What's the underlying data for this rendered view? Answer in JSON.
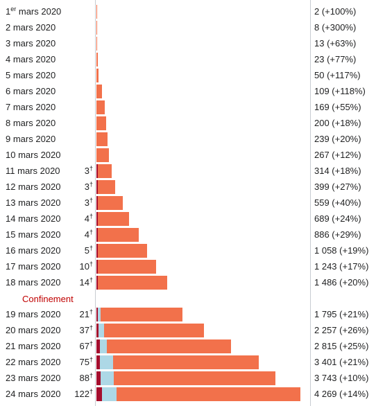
{
  "chart_data": {
    "type": "bar",
    "stacked": true,
    "orientation": "horizontal",
    "colors": {
      "deaths": "#a50e2d",
      "recovered": "#add8e6",
      "active": "#f2714b",
      "event_text": "#c00000",
      "axis": "#c8ccd1"
    },
    "x_max": 4269,
    "event": {
      "label": "Confinement",
      "after": "18 mars 2020"
    },
    "rows": [
      {
        "day": "1",
        "sup": "er",
        "month": "mars 2020",
        "deaths": "",
        "total": "2 (+100%)",
        "value": 2,
        "d": 0,
        "r": 0
      },
      {
        "day": "2",
        "sup": "",
        "month": "mars 2020",
        "deaths": "",
        "total": "8 (+300%)",
        "value": 8,
        "d": 0,
        "r": 0
      },
      {
        "day": "3",
        "sup": "",
        "month": "mars 2020",
        "deaths": "",
        "total": "13 (+63%)",
        "value": 13,
        "d": 0,
        "r": 0
      },
      {
        "day": "4",
        "sup": "",
        "month": "mars 2020",
        "deaths": "",
        "total": "23 (+77%)",
        "value": 23,
        "d": 0,
        "r": 0
      },
      {
        "day": "5",
        "sup": "",
        "month": "mars 2020",
        "deaths": "",
        "total": "50 (+117%)",
        "value": 50,
        "d": 0,
        "r": 0
      },
      {
        "day": "6",
        "sup": "",
        "month": "mars 2020",
        "deaths": "",
        "total": "109 (+118%)",
        "value": 109,
        "d": 0,
        "r": 0
      },
      {
        "day": "7",
        "sup": "",
        "month": "mars 2020",
        "deaths": "",
        "total": "169 (+55%)",
        "value": 169,
        "d": 0,
        "r": 0
      },
      {
        "day": "8",
        "sup": "",
        "month": "mars 2020",
        "deaths": "",
        "total": "200 (+18%)",
        "value": 200,
        "d": 0,
        "r": 0
      },
      {
        "day": "9",
        "sup": "",
        "month": "mars 2020",
        "deaths": "",
        "total": "239 (+20%)",
        "value": 239,
        "d": 0,
        "r": 0
      },
      {
        "day": "10",
        "sup": "",
        "month": "mars 2020",
        "deaths": "",
        "total": "267 (+12%)",
        "value": 267,
        "d": 0,
        "r": 0
      },
      {
        "day": "11",
        "sup": "",
        "month": "mars 2020",
        "deaths": "3",
        "total": "314 (+18%)",
        "value": 314,
        "d": 3,
        "r": 0
      },
      {
        "day": "12",
        "sup": "",
        "month": "mars 2020",
        "deaths": "3",
        "total": "399 (+27%)",
        "value": 399,
        "d": 3,
        "r": 0
      },
      {
        "day": "13",
        "sup": "",
        "month": "mars 2020",
        "deaths": "3",
        "total": "559 (+40%)",
        "value": 559,
        "d": 3,
        "r": 0
      },
      {
        "day": "14",
        "sup": "",
        "month": "mars 2020",
        "deaths": "4",
        "total": "689 (+24%)",
        "value": 689,
        "d": 4,
        "r": 0
      },
      {
        "day": "15",
        "sup": "",
        "month": "mars 2020",
        "deaths": "4",
        "total": "886 (+29%)",
        "value": 886,
        "d": 4,
        "r": 0
      },
      {
        "day": "16",
        "sup": "",
        "month": "mars 2020",
        "deaths": "5",
        "total": "1 058 (+19%)",
        "value": 1058,
        "d": 5,
        "r": 0
      },
      {
        "day": "17",
        "sup": "",
        "month": "mars 2020",
        "deaths": "10",
        "total": "1 243 (+17%)",
        "value": 1243,
        "d": 10,
        "r": 0
      },
      {
        "day": "18",
        "sup": "",
        "month": "mars 2020",
        "deaths": "14",
        "total": "1 486 (+20%)",
        "value": 1486,
        "d": 14,
        "r": 0
      },
      {
        "day": "19",
        "sup": "",
        "month": "mars 2020",
        "deaths": "21",
        "total": "1 795 (+21%)",
        "value": 1795,
        "d": 21,
        "r": 55
      },
      {
        "day": "20",
        "sup": "",
        "month": "mars 2020",
        "deaths": "37",
        "total": "2 257 (+26%)",
        "value": 2257,
        "d": 37,
        "r": 110
      },
      {
        "day": "21",
        "sup": "",
        "month": "mars 2020",
        "deaths": "67",
        "total": "2 815 (+25%)",
        "value": 2815,
        "d": 67,
        "r": 150
      },
      {
        "day": "22",
        "sup": "",
        "month": "mars 2020",
        "deaths": "75",
        "total": "3 401 (+21%)",
        "value": 3401,
        "d": 75,
        "r": 270
      },
      {
        "day": "23",
        "sup": "",
        "month": "mars 2020",
        "deaths": "88",
        "total": "3 743 (+10%)",
        "value": 3743,
        "d": 88,
        "r": 270
      },
      {
        "day": "24",
        "sup": "",
        "month": "mars 2020",
        "deaths": "122",
        "total": "4 269 (+14%)",
        "value": 4269,
        "d": 122,
        "r": 300
      }
    ]
  }
}
